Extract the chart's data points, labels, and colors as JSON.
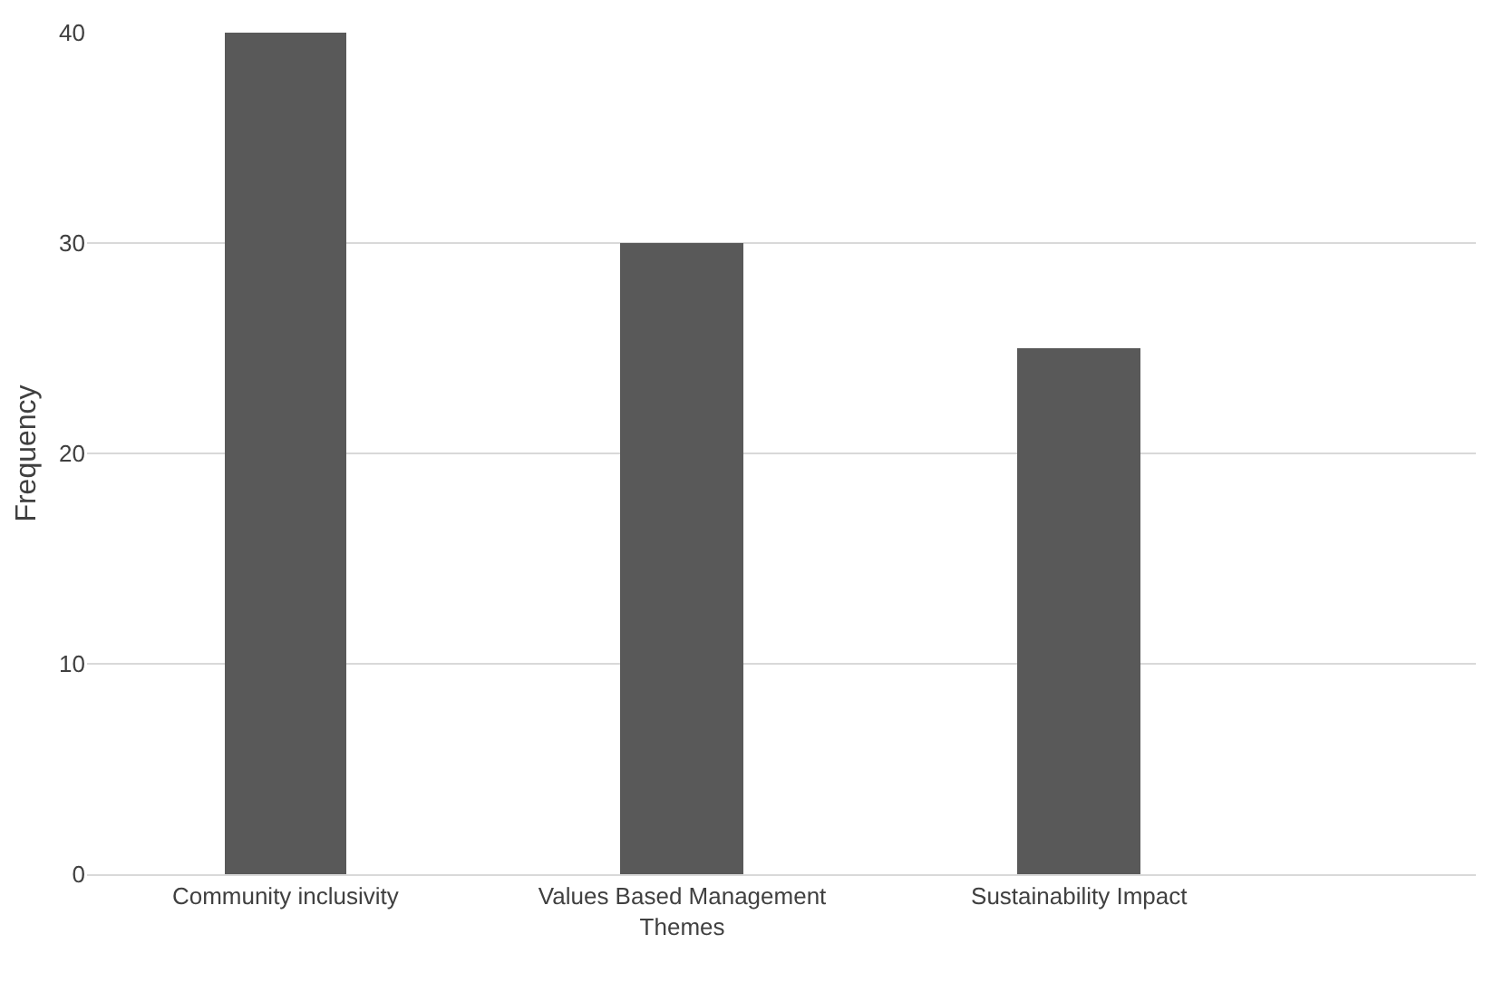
{
  "chart_data": {
    "type": "bar",
    "ylabel": "Frequency",
    "categories": [
      "Community inclusivity",
      "Values Based Management Themes",
      "Sustainability Impact"
    ],
    "values": [
      40,
      30,
      25
    ],
    "color": "#595959",
    "ylim": [
      0,
      40
    ],
    "yticks": [
      0,
      10,
      20,
      30,
      40
    ],
    "grid": "y",
    "legend": false
  }
}
